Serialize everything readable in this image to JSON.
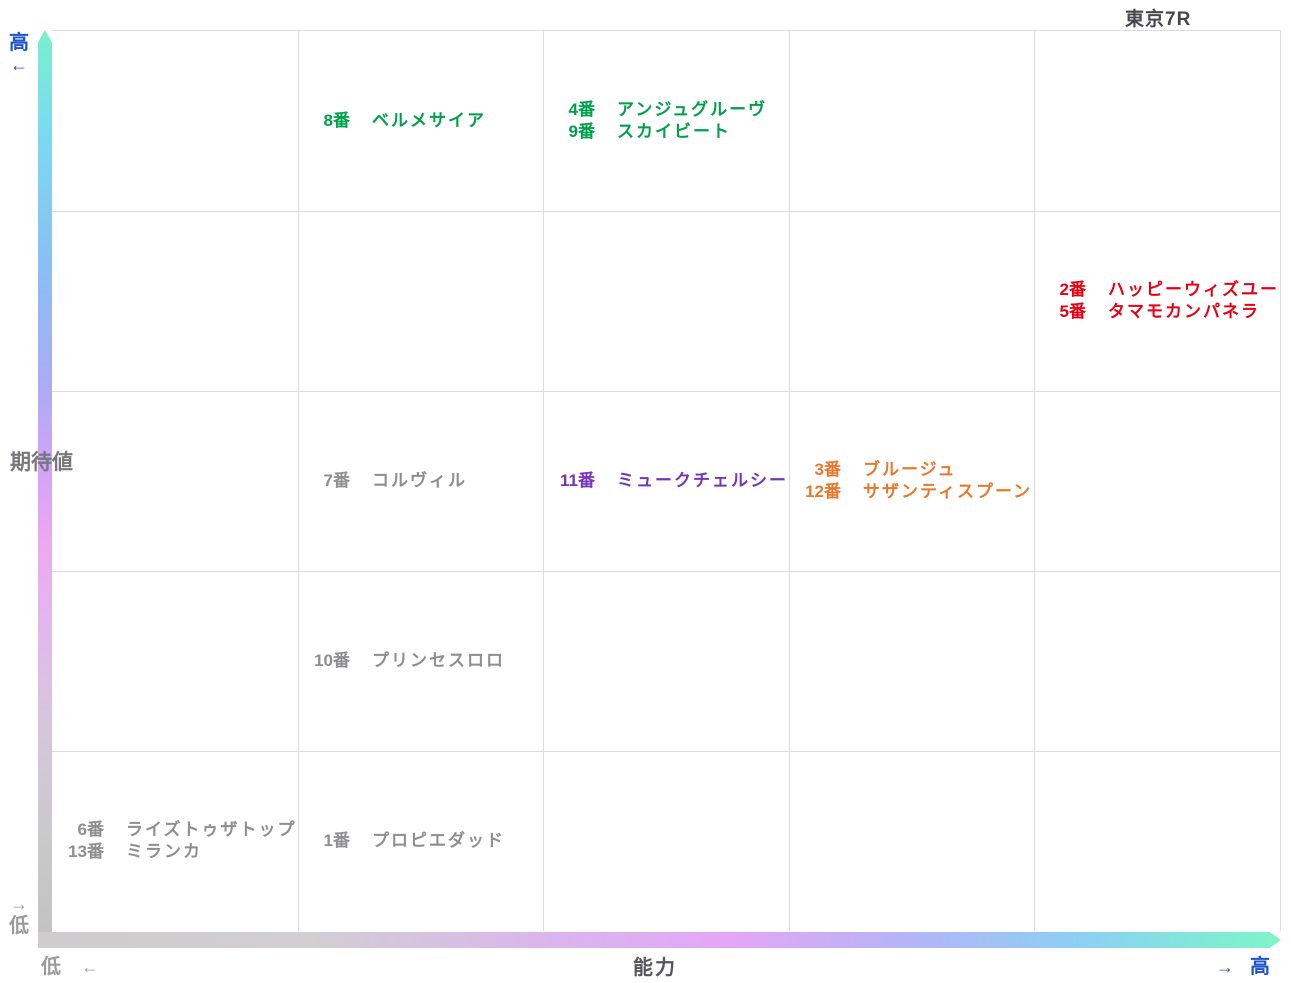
{
  "title": "東京7R",
  "colors": {
    "green": "#00a04b",
    "red": "#e60012",
    "orange": "#e8782d",
    "purple": "#7535b5",
    "gray": "#8e8e90",
    "blue_label": "#1b53cf",
    "gray_label": "#9b9b9b",
    "dark_label": "#55555c",
    "title_color": "#46464e",
    "grid_line": "#dcdcdc"
  },
  "axis_labels": {
    "y_high": "高",
    "y_high_arrow": "←",
    "y_label": "期待値",
    "y_low_arrow": "→",
    "y_low": "低",
    "x_low": "低",
    "x_low_arrow": "←",
    "x_label": "能力",
    "x_high_arrow": "→",
    "x_high": "高"
  },
  "chart_data": {
    "type": "scatter",
    "title": "東京7R",
    "xlabel": "能力",
    "ylabel": "期待値",
    "x_axis": {
      "low": "低",
      "high": "高"
    },
    "y_axis": {
      "low": "低",
      "high": "高"
    },
    "grid": {
      "cols": 5,
      "rows": 5
    },
    "legend_note": "col: 1=lowest ability … 5=highest ability; row: 1=highest expected value … 5=lowest expected value",
    "points": [
      {
        "col": 2,
        "row": 1,
        "color": "green",
        "horses": [
          {
            "num": "8番",
            "name": "ベルメサイア"
          }
        ]
      },
      {
        "col": 3,
        "row": 1,
        "color": "green",
        "horses": [
          {
            "num": "4番",
            "name": "アンジュグルーヴ"
          },
          {
            "num": "9番",
            "name": "スカイビート"
          }
        ]
      },
      {
        "col": 5,
        "row": 2,
        "color": "red",
        "horses": [
          {
            "num": "2番",
            "name": "ハッピーウィズユー"
          },
          {
            "num": "5番",
            "name": "タマモカンパネラ"
          }
        ]
      },
      {
        "col": 2,
        "row": 3,
        "color": "gray",
        "horses": [
          {
            "num": "7番",
            "name": "コルヴィル"
          }
        ]
      },
      {
        "col": 3,
        "row": 3,
        "color": "purple",
        "horses": [
          {
            "num": "11番",
            "name": "ミュークチェルシー"
          }
        ]
      },
      {
        "col": 4,
        "row": 3,
        "color": "orange",
        "horses": [
          {
            "num": "3番",
            "name": "ブルージュ"
          },
          {
            "num": "12番",
            "name": "サザンティスプーン"
          }
        ]
      },
      {
        "col": 2,
        "row": 4,
        "color": "gray",
        "horses": [
          {
            "num": "10番",
            "name": "プリンセスロロ"
          }
        ]
      },
      {
        "col": 1,
        "row": 5,
        "color": "gray",
        "horses": [
          {
            "num": "6番",
            "name": "ライズトゥザトップ"
          },
          {
            "num": "13番",
            "name": "ミランカ"
          }
        ]
      },
      {
        "col": 2,
        "row": 5,
        "color": "gray",
        "horses": [
          {
            "num": "1番",
            "name": "プロピエダッド"
          }
        ]
      }
    ]
  }
}
